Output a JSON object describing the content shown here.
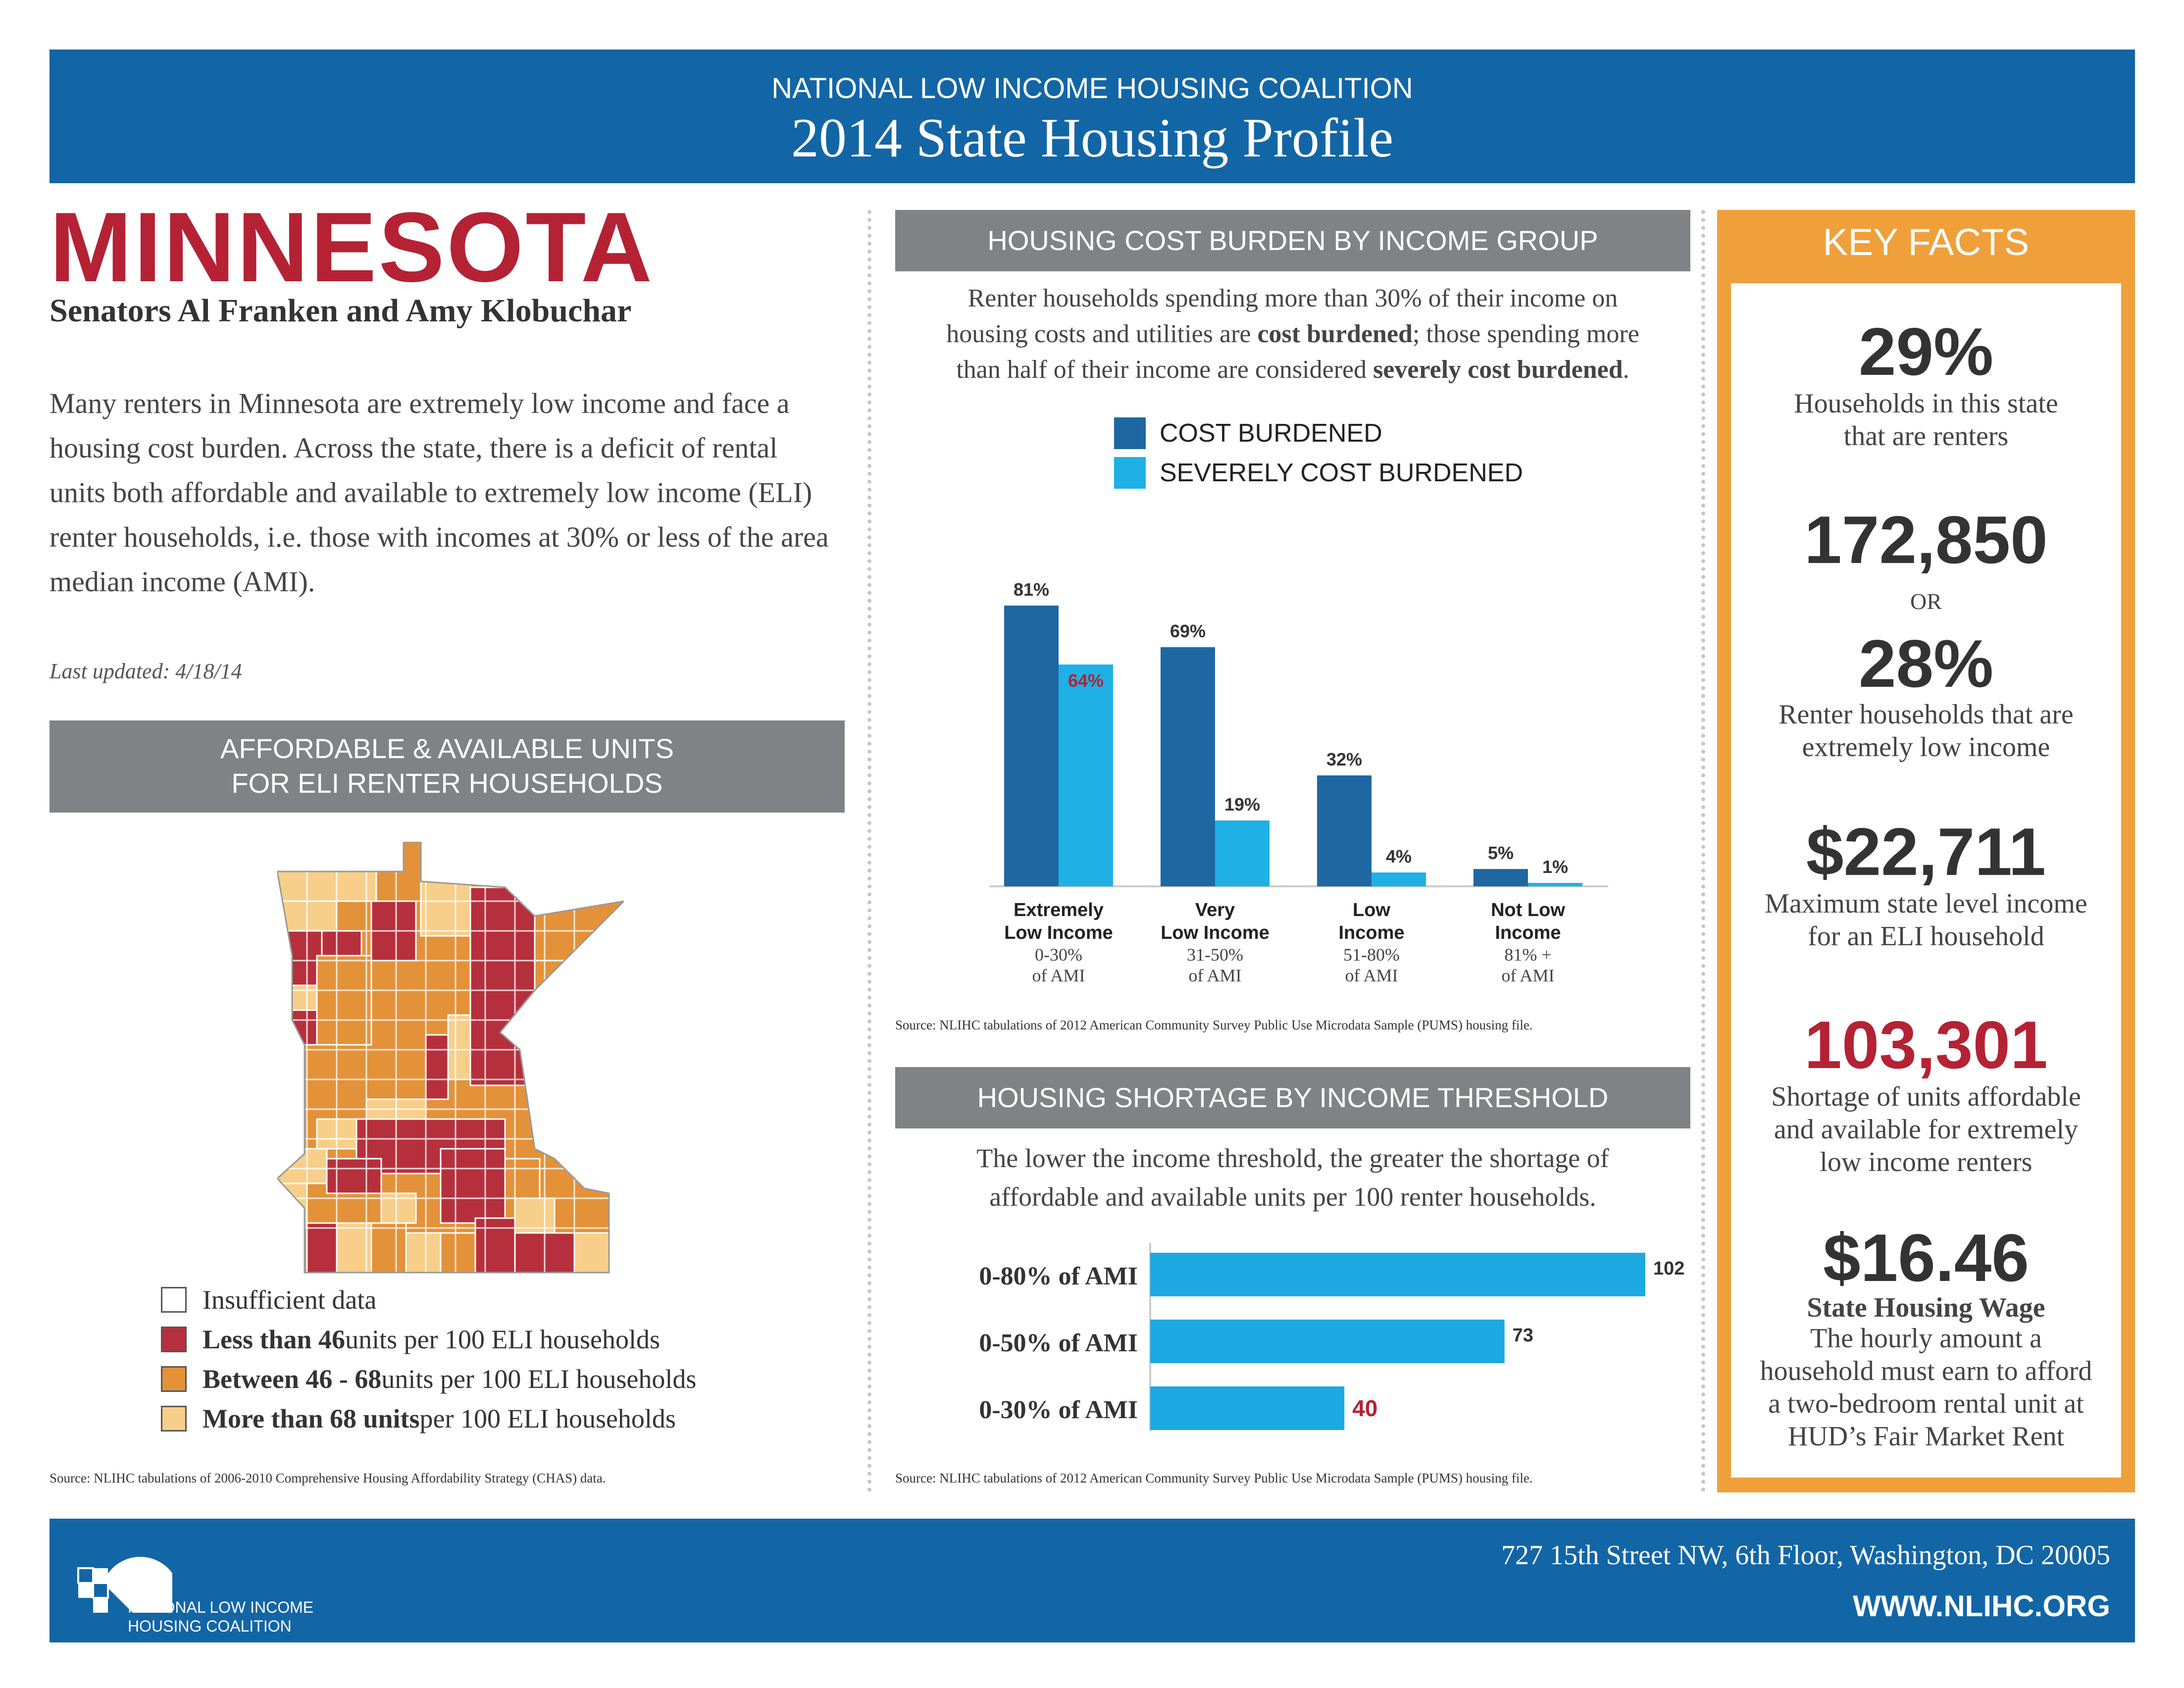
{
  "header": {
    "org": "NATIONAL LOW INCOME HOUSING COALITION",
    "title": "2014 State Housing Profile"
  },
  "state": {
    "name": "MINNESOTA",
    "senators": "Senators Al Franken and Amy Klobuchar",
    "intro": "Many renters in Minnesota are extremely low income and face a housing cost burden. Across the state, there is a deficit of rental units both affordable and available to extremely low income (ELI) renter households, i.e. those with incomes at 30% or less of the area median income (AMI).",
    "last_updated": "Last updated: 4/18/14"
  },
  "units_map": {
    "heading_line1": "AFFORDABLE & AVAILABLE UNITS",
    "heading_line2": "FOR ELI RENTER HOUSEHOLDS",
    "legend": [
      {
        "bold": "",
        "text": "Insufficient data",
        "color": "#ffffff"
      },
      {
        "bold": "Less than 46",
        "text": " units per 100 ELI households",
        "color": "#b5303c"
      },
      {
        "bold": "Between 46 - 68",
        "text": " units per 100 ELI households",
        "color": "#e3923a"
      },
      {
        "bold": "More than 68 units",
        "text": " per 100 ELI households",
        "color": "#f7cf8a"
      }
    ],
    "source": "Source: NLIHC tabulations of 2006-2010 Comprehensive Housing Affordability Strategy (CHAS) data."
  },
  "burden": {
    "heading": "HOUSING COST BURDEN BY INCOME GROUP",
    "desc_line1": "Renter households spending more than 30% of their income on",
    "desc_line2a": "housing costs and utilities are ",
    "desc_line2b": "cost burdened",
    "desc_line2c": "; those spending more",
    "desc_line3a": "than half of their income are considered ",
    "desc_line3b": "severely cost burdened",
    "desc_line3c": ".",
    "legend_cost": "COST BURDENED",
    "legend_severe": "SEVERELY COST BURDENED",
    "source": "Source: NLIHC tabulations of 2012 American Community Survey Public Use Microdata Sample (PUMS) housing file."
  },
  "shortage": {
    "heading": "HOUSING SHORTAGE BY INCOME THRESHOLD",
    "desc_line1": "The lower the income threshold, the greater the shortage of",
    "desc_line2": "affordable and available units per 100 renter households.",
    "source": "Source: NLIHC tabulations of 2012 American Community Survey Public Use Microdata Sample (PUMS) housing file."
  },
  "chart_data": [
    {
      "type": "bar",
      "title": "HOUSING COST BURDEN BY INCOME GROUP",
      "categories": [
        {
          "line1": "Extremely",
          "line2": "Low Income",
          "line3": "0-30%",
          "line4": "of AMI"
        },
        {
          "line1": "Very",
          "line2": "Low Income",
          "line3": "31-50%",
          "line4": "of AMI"
        },
        {
          "line1": "Low",
          "line2": "Income",
          "line3": "51-80%",
          "line4": "of AMI"
        },
        {
          "line1": "Not Low",
          "line2": "Income",
          "line3": "81% +",
          "line4": "of AMI"
        }
      ],
      "series": [
        {
          "name": "COST BURDENED",
          "values": [
            81,
            69,
            32,
            5
          ],
          "labels": [
            "81%",
            "69%",
            "32%",
            "5%"
          ],
          "color": "#1f67a3"
        },
        {
          "name": "SEVERELY COST BURDENED",
          "values": [
            64,
            19,
            4,
            1
          ],
          "labels": [
            "64%",
            "19%",
            "4%",
            "1%"
          ],
          "color": "#1fb0e6"
        }
      ],
      "highlight_label_color": "#b42234",
      "ylim": [
        0,
        100
      ]
    },
    {
      "type": "bar",
      "orientation": "horizontal",
      "title": "HOUSING SHORTAGE BY INCOME THRESHOLD",
      "categories": [
        "0-80% of AMI",
        "0-50% of AMI",
        "0-30% of AMI"
      ],
      "values": [
        102,
        73,
        40
      ],
      "labels": [
        "102",
        "73",
        "40"
      ],
      "color": "#1ca9e1",
      "highlight_label_color": "#b42234",
      "xlim": [
        0,
        110
      ]
    }
  ],
  "key_facts": {
    "title": "KEY FACTS",
    "f1_value": "29%",
    "f1_line1": "Households in this state",
    "f1_line2": "that are renters",
    "f2_value": "172,850",
    "f2_or": "OR",
    "f3_value": "28%",
    "f3_line1": "Renter households that are",
    "f3_line2": "extremely low income",
    "f4_value": "$22,711",
    "f4_line1": "Maximum state level income",
    "f4_line2": "for an ELI household",
    "f5_value": "103,301",
    "f5_color": "#b42234",
    "f5_line1": "Shortage of units affordable",
    "f5_line2": "and available for extremely",
    "f5_line3": "low income renters",
    "f6_value": "$16.46",
    "f6_label": "State Housing Wage",
    "f6_line1": "The hourly amount a",
    "f6_line2": "household must earn to afford",
    "f6_line3": "a two-bedroom rental unit at",
    "f6_line4": "HUD’s Fair Market Rent"
  },
  "footer": {
    "logo_line1": "NATIONAL LOW INCOME",
    "logo_line2": "HOUSING COALITION",
    "address": "727 15th Street NW, 6th Floor, Washington, DC 20005",
    "website": "WWW.NLIHC.ORG"
  },
  "colors": {
    "brand_blue": "#1266a6",
    "red": "#b42234",
    "orange": "#f0a03a",
    "gray": "#808285"
  }
}
